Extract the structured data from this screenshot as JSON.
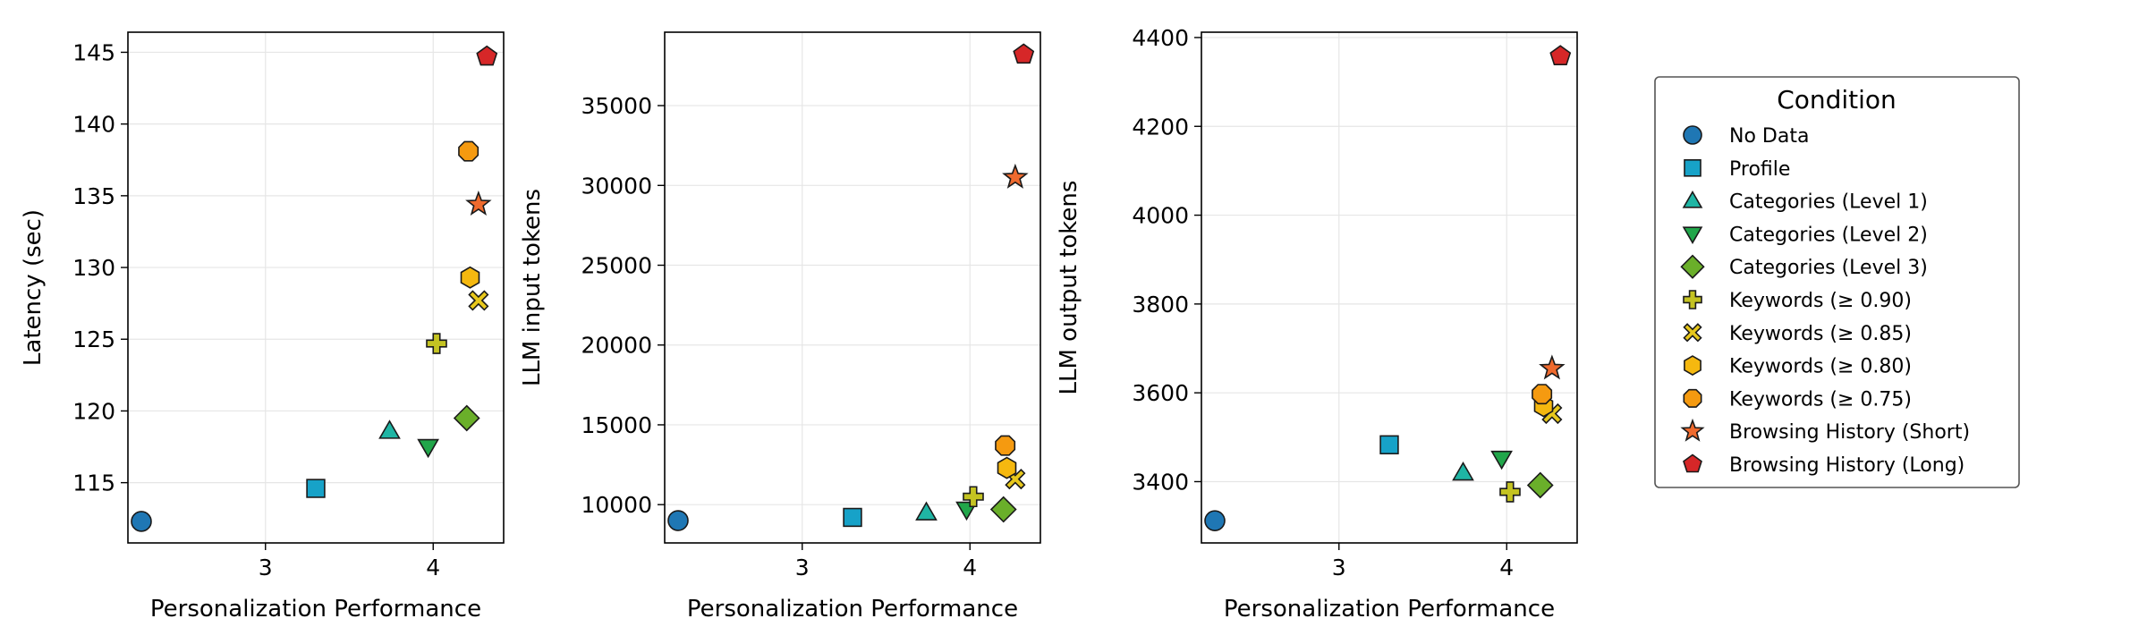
{
  "chart_data": [
    {
      "type": "scatter",
      "xlabel": "Personalization Performance",
      "ylabel": "Latency (sec)",
      "xlim": [
        2.18,
        4.42
      ],
      "ylim": [
        110.8,
        146.4
      ],
      "xticks": [
        3,
        4
      ],
      "yticks": [
        115,
        120,
        125,
        130,
        135,
        140,
        145
      ],
      "grid": true,
      "points": [
        {
          "series": "No Data",
          "x": 2.26,
          "y": 112.3
        },
        {
          "series": "Profile",
          "x": 3.3,
          "y": 114.6
        },
        {
          "series": "Categories (Level 1)",
          "x": 3.74,
          "y": 118.6
        },
        {
          "series": "Categories (Level 2)",
          "x": 3.97,
          "y": 117.5
        },
        {
          "series": "Categories (Level 3)",
          "x": 4.2,
          "y": 119.5
        },
        {
          "series": "Keywords (≥ 0.90)",
          "x": 4.02,
          "y": 124.7
        },
        {
          "series": "Keywords (≥ 0.85)",
          "x": 4.27,
          "y": 127.7
        },
        {
          "series": "Keywords (≥ 0.80)",
          "x": 4.22,
          "y": 129.3
        },
        {
          "series": "Keywords (≥ 0.75)",
          "x": 4.21,
          "y": 138.1
        },
        {
          "series": "Browsing History (Short)",
          "x": 4.27,
          "y": 134.4
        },
        {
          "series": "Browsing History (Long)",
          "x": 4.32,
          "y": 144.7
        }
      ]
    },
    {
      "type": "scatter",
      "xlabel": "Personalization Performance",
      "ylabel": "LLM input tokens",
      "xlim": [
        2.18,
        4.42
      ],
      "ylim": [
        7600,
        39600
      ],
      "xticks": [
        3,
        4
      ],
      "yticks": [
        10000,
        15000,
        20000,
        25000,
        30000,
        35000
      ],
      "grid": true,
      "points": [
        {
          "series": "No Data",
          "x": 2.26,
          "y": 9000
        },
        {
          "series": "Profile",
          "x": 3.3,
          "y": 9200
        },
        {
          "series": "Categories (Level 1)",
          "x": 3.74,
          "y": 9500
        },
        {
          "series": "Categories (Level 2)",
          "x": 3.98,
          "y": 9700
        },
        {
          "series": "Categories (Level 3)",
          "x": 4.2,
          "y": 9700
        },
        {
          "series": "Keywords (≥ 0.90)",
          "x": 4.02,
          "y": 10500
        },
        {
          "series": "Keywords (≥ 0.85)",
          "x": 4.27,
          "y": 11600
        },
        {
          "series": "Keywords (≥ 0.80)",
          "x": 4.22,
          "y": 12300
        },
        {
          "series": "Keywords (≥ 0.75)",
          "x": 4.21,
          "y": 13700
        },
        {
          "series": "Browsing History (Short)",
          "x": 4.27,
          "y": 30500
        },
        {
          "series": "Browsing History (Long)",
          "x": 4.32,
          "y": 38200
        }
      ]
    },
    {
      "type": "scatter",
      "xlabel": "Personalization Performance",
      "ylabel": "LLM output tokens",
      "xlim": [
        2.18,
        4.42
      ],
      "ylim": [
        3262,
        4412
      ],
      "xticks": [
        3,
        4
      ],
      "yticks": [
        3400,
        3600,
        3800,
        4000,
        4200,
        4400
      ],
      "grid": true,
      "points": [
        {
          "series": "No Data",
          "x": 2.26,
          "y": 3312
        },
        {
          "series": "Profile",
          "x": 3.3,
          "y": 3483
        },
        {
          "series": "Categories (Level 1)",
          "x": 3.74,
          "y": 3420
        },
        {
          "series": "Categories (Level 2)",
          "x": 3.97,
          "y": 3452
        },
        {
          "series": "Categories (Level 3)",
          "x": 4.2,
          "y": 3392
        },
        {
          "series": "Keywords (≥ 0.90)",
          "x": 4.02,
          "y": 3377
        },
        {
          "series": "Keywords (≥ 0.85)",
          "x": 4.27,
          "y": 3553
        },
        {
          "series": "Keywords (≥ 0.80)",
          "x": 4.22,
          "y": 3570
        },
        {
          "series": "Keywords (≥ 0.75)",
          "x": 4.21,
          "y": 3597
        },
        {
          "series": "Browsing History (Short)",
          "x": 4.27,
          "y": 3655
        },
        {
          "series": "Browsing History (Long)",
          "x": 4.32,
          "y": 4358
        }
      ]
    }
  ],
  "legend": {
    "title": "Condition",
    "placement": "right",
    "entries": [
      {
        "label": "No Data",
        "marker": "circle",
        "color": "#1f77b4"
      },
      {
        "label": "Profile",
        "marker": "square",
        "color": "#17a2c8"
      },
      {
        "label": "Categories (Level 1)",
        "marker": "triangle-up",
        "color": "#1fb5a4"
      },
      {
        "label": "Categories (Level 2)",
        "marker": "triangle-down",
        "color": "#21a64a"
      },
      {
        "label": "Categories (Level 3)",
        "marker": "diamond",
        "color": "#6aaf2a"
      },
      {
        "label": "Keywords (≥ 0.90)",
        "marker": "plus",
        "color": "#c4c322"
      },
      {
        "label": "Keywords (≥ 0.85)",
        "marker": "x",
        "color": "#e8c81c"
      },
      {
        "label": "Keywords (≥ 0.80)",
        "marker": "hexagon",
        "color": "#f5b80f"
      },
      {
        "label": "Keywords (≥ 0.75)",
        "marker": "octagon",
        "color": "#f59a10"
      },
      {
        "label": "Browsing History (Short)",
        "marker": "star",
        "color": "#ef6a2e"
      },
      {
        "label": "Browsing History (Long)",
        "marker": "pentagon",
        "color": "#d62728"
      }
    ]
  }
}
